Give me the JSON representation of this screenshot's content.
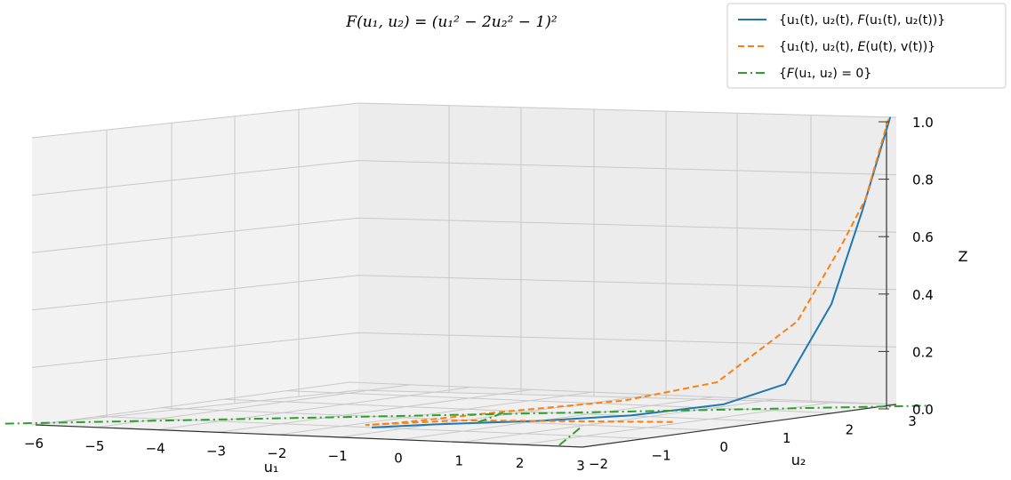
{
  "chart_data": {
    "type": "line",
    "projection": "3d",
    "title": "F(u₁, u₂) = (u₁² − 2u₂² − 1)²",
    "xlabel": "u₁",
    "ylabel": "u₂",
    "zlabel": "Z",
    "x_ticks": [
      "−6",
      "−5",
      "−4",
      "−3",
      "−2",
      "−1",
      "0",
      "1",
      "2",
      "3"
    ],
    "y_ticks": [
      "−2",
      "−1",
      "0",
      "1",
      "2",
      "3"
    ],
    "z_ticks": [
      "0.0",
      "0.2",
      "0.4",
      "0.6",
      "0.8",
      "1.0"
    ],
    "xlim": [
      -6,
      3
    ],
    "ylim": [
      -2,
      3
    ],
    "zlim": [
      0,
      1
    ],
    "grid": true,
    "legend_position": "top-right",
    "series": [
      {
        "name": "{u₁(t), u₂(t), F(u₁(t), u₂(t))}",
        "color": "#1f77b4",
        "style": "solid",
        "x": [
          -1.5,
          -1.0,
          0.0,
          0.8,
          1.6,
          2.1,
          2.45,
          2.7,
          2.9
        ],
        "y": [
          -1.0,
          -0.5,
          0.2,
          0.9,
          1.6,
          2.1,
          2.5,
          2.75,
          3.0
        ],
        "z": [
          0.0,
          0.0,
          0.0,
          0.005,
          0.03,
          0.09,
          0.36,
          0.68,
          1.0
        ]
      },
      {
        "name": "{u₁(t), u₂(t), E(u(t), v(t))}",
        "color": "#ff7f0e",
        "style": "dashed",
        "x": [
          1.8,
          -0.8,
          -1.8,
          -1.6,
          -0.5,
          0.8,
          1.6,
          2.3,
          2.6,
          2.75,
          2.88
        ],
        "y": [
          0.6,
          -0.3,
          -0.8,
          -0.5,
          0.1,
          0.8,
          1.5,
          2.1,
          2.5,
          2.75,
          3.0
        ],
        "z": [
          0.0,
          0.01,
          0.0,
          0.0,
          0.03,
          0.06,
          0.11,
          0.31,
          0.56,
          0.72,
          1.0
        ]
      },
      {
        "name": "{F(u₁, u₂) = 0}",
        "color": "#2ca02c",
        "style": "dashdot",
        "x": [
          -6.5,
          3.5
        ],
        "y": [
          -2.0,
          3.0
        ],
        "z": [
          0.0,
          0.0
        ]
      }
    ],
    "extra_segments": [
      {
        "color": "#2ca02c",
        "style": "dashdot",
        "x": [
          -1.2,
          -0.6
        ],
        "y": [
          0.8,
          -0.2
        ],
        "z": [
          0.0,
          0.0
        ]
      },
      {
        "color": "#2ca02c",
        "style": "dashdot",
        "x": [
          1.2,
          2.6
        ],
        "y": [
          -0.3,
          -2.0
        ],
        "z": [
          0.0,
          0.0
        ]
      }
    ]
  },
  "legend": {
    "items": [
      {
        "prefix": "{u₁(t), u₂(t), ",
        "fn": "F",
        "suffix": "(u₁(t), u₂(t))}"
      },
      {
        "prefix": "{u₁(t), u₂(t), ",
        "fn": "E",
        "suffix": "(u(t), v(t))}"
      },
      {
        "prefix": "{",
        "fn": "F",
        "suffix": "(u₁, u₂) = 0}"
      }
    ]
  }
}
